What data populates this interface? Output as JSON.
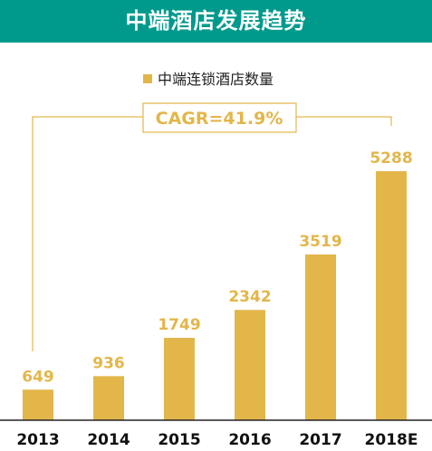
{
  "colors": {
    "title_bg": "#009a8c",
    "bar": "#e3b64a",
    "axis": "#222222"
  },
  "chart_data": {
    "type": "bar",
    "title": "中端酒店发展趋势",
    "categories": [
      "2013",
      "2014",
      "2015",
      "2016",
      "2017",
      "2018E"
    ],
    "series": [
      {
        "name": "中端连锁酒店数量",
        "values": [
          649,
          936,
          1749,
          2342,
          3519,
          5288
        ]
      }
    ],
    "value_labels": [
      "649",
      "936",
      "1749",
      "2342",
      "3519",
      "5288"
    ],
    "annotation": "CAGR=41.9%",
    "ylim": [
      0,
      6000
    ],
    "grid": false,
    "legend_position": "top-center"
  }
}
